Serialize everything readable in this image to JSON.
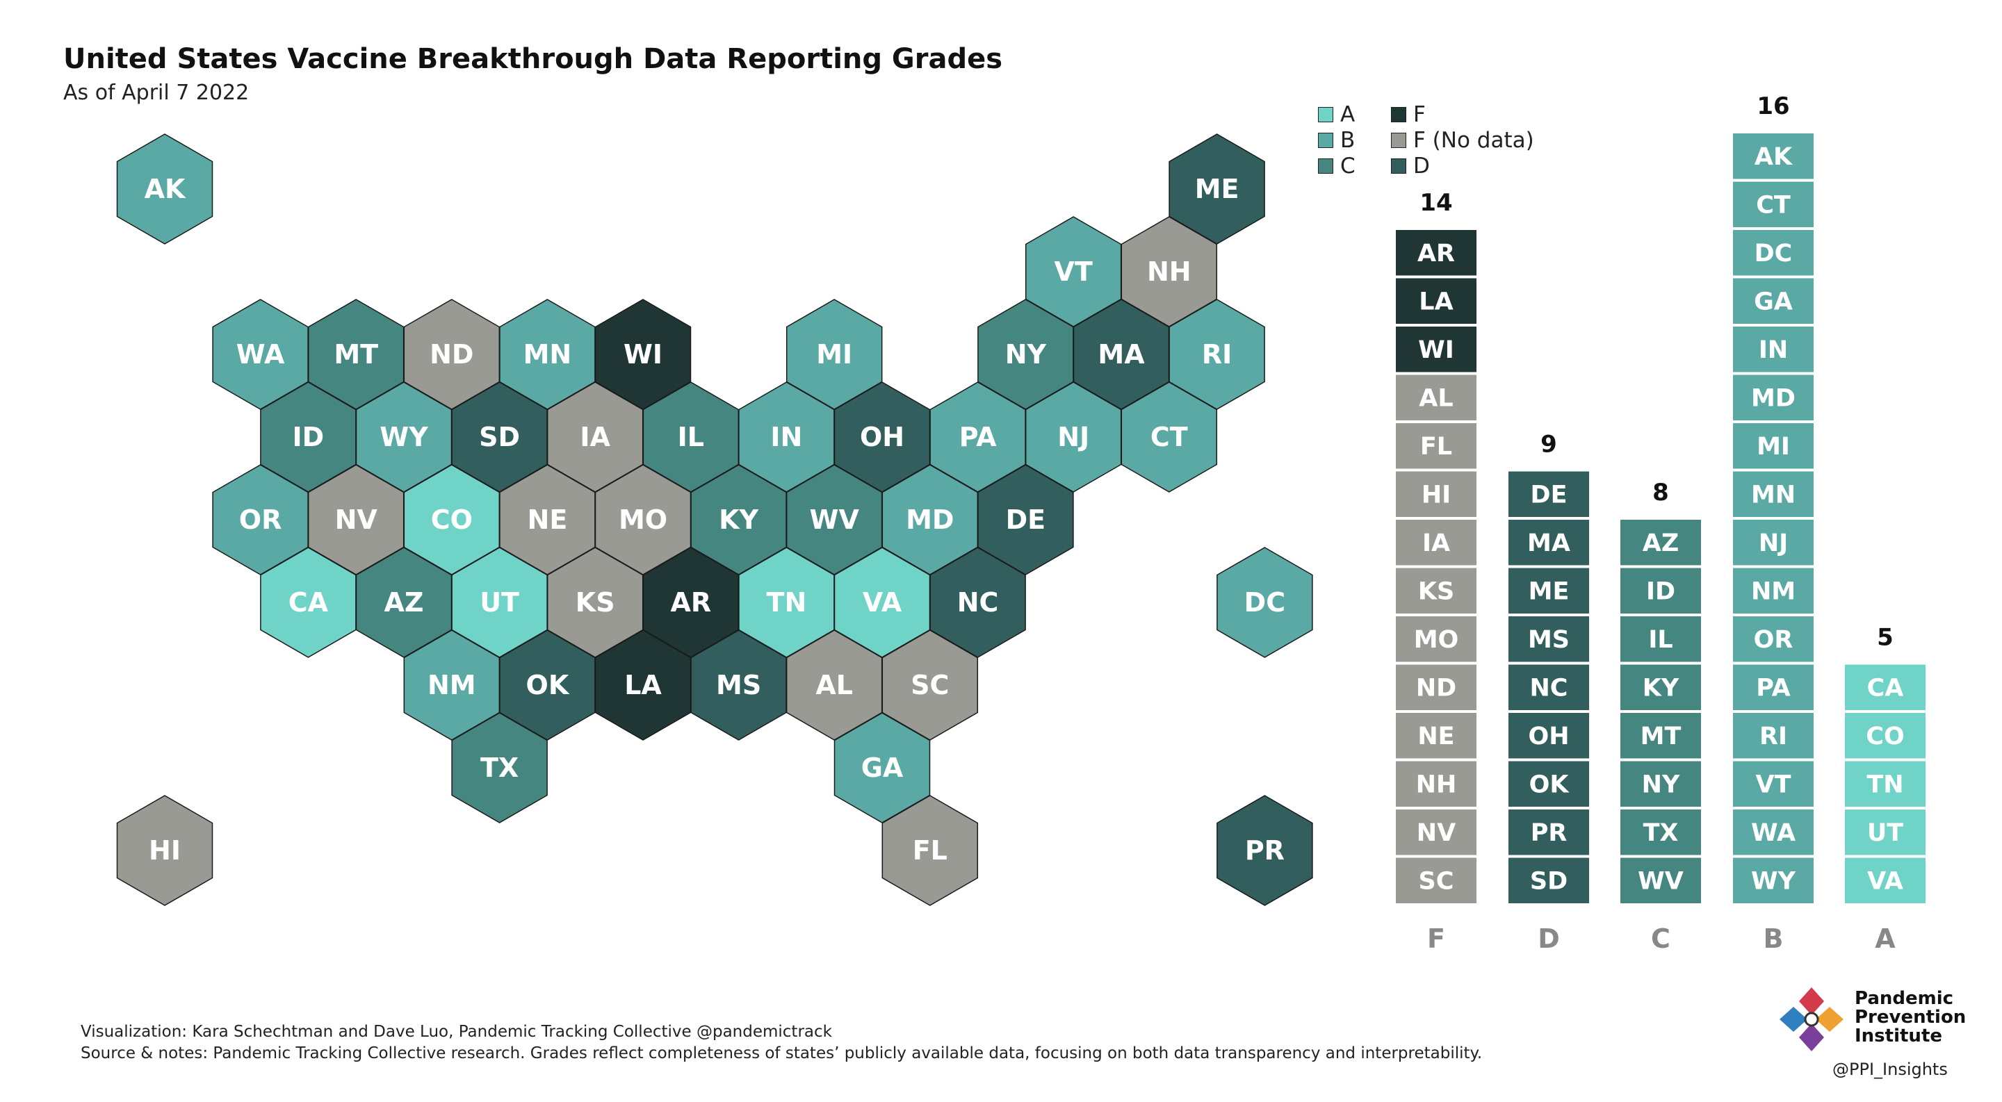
{
  "title": "United States Vaccine Breakthrough Data Reporting Grades",
  "subtitle": "As of April 7 2022",
  "colors": {
    "A": "#6fd3c8",
    "B": "#5ba9a4",
    "C": "#468680",
    "D": "#325f5d",
    "F": "#1f3634",
    "F_no_data": "#9a9a95"
  },
  "legend": [
    {
      "key": "A",
      "label": "A"
    },
    {
      "key": "F",
      "label": "F"
    },
    {
      "key": "B",
      "label": "B"
    },
    {
      "key": "F_no_data",
      "label": "F (No data)"
    },
    {
      "key": "C",
      "label": "C"
    },
    {
      "key": "D",
      "label": "D"
    }
  ],
  "chart_data": [
    {
      "type": "hex tile map",
      "grid": "hex columns and rows (logical grid position, not pixels)",
      "tiles": [
        {
          "state": "AK",
          "grade": "B",
          "col": 0,
          "row": 0
        },
        {
          "state": "ME",
          "grade": "D",
          "col": 11,
          "row": 0
        },
        {
          "state": "VT",
          "grade": "B",
          "col": 9.5,
          "row": 1
        },
        {
          "state": "NH",
          "grade": "F_no_data",
          "col": 10.5,
          "row": 1
        },
        {
          "state": "WA",
          "grade": "B",
          "col": 1,
          "row": 2
        },
        {
          "state": "MT",
          "grade": "C",
          "col": 2,
          "row": 2
        },
        {
          "state": "ND",
          "grade": "F_no_data",
          "col": 3,
          "row": 2
        },
        {
          "state": "MN",
          "grade": "B",
          "col": 4,
          "row": 2
        },
        {
          "state": "WI",
          "grade": "F",
          "col": 5,
          "row": 2
        },
        {
          "state": "MI",
          "grade": "B",
          "col": 7,
          "row": 2
        },
        {
          "state": "NY",
          "grade": "C",
          "col": 9,
          "row": 2
        },
        {
          "state": "MA",
          "grade": "D",
          "col": 10,
          "row": 2
        },
        {
          "state": "RI",
          "grade": "B",
          "col": 11,
          "row": 2
        },
        {
          "state": "ID",
          "grade": "C",
          "col": 1.5,
          "row": 3
        },
        {
          "state": "WY",
          "grade": "B",
          "col": 2.5,
          "row": 3
        },
        {
          "state": "SD",
          "grade": "D",
          "col": 3.5,
          "row": 3
        },
        {
          "state": "IA",
          "grade": "F_no_data",
          "col": 4.5,
          "row": 3
        },
        {
          "state": "IL",
          "grade": "C",
          "col": 5.5,
          "row": 3
        },
        {
          "state": "IN",
          "grade": "B",
          "col": 6.5,
          "row": 3
        },
        {
          "state": "OH",
          "grade": "D",
          "col": 7.5,
          "row": 3
        },
        {
          "state": "PA",
          "grade": "B",
          "col": 8.5,
          "row": 3
        },
        {
          "state": "NJ",
          "grade": "B",
          "col": 9.5,
          "row": 3
        },
        {
          "state": "CT",
          "grade": "B",
          "col": 10.5,
          "row": 3
        },
        {
          "state": "OR",
          "grade": "B",
          "col": 1,
          "row": 4
        },
        {
          "state": "NV",
          "grade": "F_no_data",
          "col": 2,
          "row": 4
        },
        {
          "state": "CO",
          "grade": "A",
          "col": 3,
          "row": 4
        },
        {
          "state": "NE",
          "grade": "F_no_data",
          "col": 4,
          "row": 4
        },
        {
          "state": "MO",
          "grade": "F_no_data",
          "col": 5,
          "row": 4
        },
        {
          "state": "KY",
          "grade": "C",
          "col": 6,
          "row": 4
        },
        {
          "state": "WV",
          "grade": "C",
          "col": 7,
          "row": 4
        },
        {
          "state": "MD",
          "grade": "B",
          "col": 8,
          "row": 4
        },
        {
          "state": "DE",
          "grade": "D",
          "col": 9,
          "row": 4
        },
        {
          "state": "CA",
          "grade": "A",
          "col": 1.5,
          "row": 5
        },
        {
          "state": "AZ",
          "grade": "C",
          "col": 2.5,
          "row": 5
        },
        {
          "state": "UT",
          "grade": "A",
          "col": 3.5,
          "row": 5
        },
        {
          "state": "KS",
          "grade": "F_no_data",
          "col": 4.5,
          "row": 5
        },
        {
          "state": "AR",
          "grade": "F",
          "col": 5.5,
          "row": 5
        },
        {
          "state": "TN",
          "grade": "A",
          "col": 6.5,
          "row": 5
        },
        {
          "state": "VA",
          "grade": "A",
          "col": 7.5,
          "row": 5
        },
        {
          "state": "NC",
          "grade": "D",
          "col": 8.5,
          "row": 5
        },
        {
          "state": "DC",
          "grade": "B",
          "col": 11.5,
          "row": 5
        },
        {
          "state": "NM",
          "grade": "B",
          "col": 3,
          "row": 6
        },
        {
          "state": "OK",
          "grade": "D",
          "col": 4,
          "row": 6
        },
        {
          "state": "LA",
          "grade": "F",
          "col": 5,
          "row": 6
        },
        {
          "state": "MS",
          "grade": "D",
          "col": 6,
          "row": 6
        },
        {
          "state": "AL",
          "grade": "F_no_data",
          "col": 7,
          "row": 6
        },
        {
          "state": "SC",
          "grade": "F_no_data",
          "col": 8,
          "row": 6
        },
        {
          "state": "TX",
          "grade": "C",
          "col": 3.5,
          "row": 7
        },
        {
          "state": "GA",
          "grade": "B",
          "col": 7.5,
          "row": 7
        },
        {
          "state": "HI",
          "grade": "F_no_data",
          "col": 0,
          "row": 8
        },
        {
          "state": "FL",
          "grade": "F_no_data",
          "col": 8,
          "row": 8
        },
        {
          "state": "PR",
          "grade": "D",
          "col": 11.5,
          "row": 8
        }
      ]
    },
    {
      "type": "bar",
      "categories": [
        "F",
        "D",
        "C",
        "B",
        "A"
      ],
      "values": [
        14,
        9,
        8,
        16,
        5
      ],
      "stacks": [
        {
          "grade": "F",
          "count": 14,
          "states": [
            {
              "s": "AR",
              "c": "F"
            },
            {
              "s": "LA",
              "c": "F"
            },
            {
              "s": "WI",
              "c": "F"
            },
            {
              "s": "AL",
              "c": "F_no_data"
            },
            {
              "s": "FL",
              "c": "F_no_data"
            },
            {
              "s": "HI",
              "c": "F_no_data"
            },
            {
              "s": "IA",
              "c": "F_no_data"
            },
            {
              "s": "KS",
              "c": "F_no_data"
            },
            {
              "s": "MO",
              "c": "F_no_data"
            },
            {
              "s": "ND",
              "c": "F_no_data"
            },
            {
              "s": "NE",
              "c": "F_no_data"
            },
            {
              "s": "NH",
              "c": "F_no_data"
            },
            {
              "s": "NV",
              "c": "F_no_data"
            },
            {
              "s": "SC",
              "c": "F_no_data"
            }
          ]
        },
        {
          "grade": "D",
          "count": 9,
          "states": [
            {
              "s": "DE",
              "c": "D"
            },
            {
              "s": "MA",
              "c": "D"
            },
            {
              "s": "ME",
              "c": "D"
            },
            {
              "s": "MS",
              "c": "D"
            },
            {
              "s": "NC",
              "c": "D"
            },
            {
              "s": "OH",
              "c": "D"
            },
            {
              "s": "OK",
              "c": "D"
            },
            {
              "s": "PR",
              "c": "D"
            },
            {
              "s": "SD",
              "c": "D"
            }
          ]
        },
        {
          "grade": "C",
          "count": 8,
          "states": [
            {
              "s": "AZ",
              "c": "C"
            },
            {
              "s": "ID",
              "c": "C"
            },
            {
              "s": "IL",
              "c": "C"
            },
            {
              "s": "KY",
              "c": "C"
            },
            {
              "s": "MT",
              "c": "C"
            },
            {
              "s": "NY",
              "c": "C"
            },
            {
              "s": "TX",
              "c": "C"
            },
            {
              "s": "WV",
              "c": "C"
            }
          ]
        },
        {
          "grade": "B",
          "count": 16,
          "states": [
            {
              "s": "AK",
              "c": "B"
            },
            {
              "s": "CT",
              "c": "B"
            },
            {
              "s": "DC",
              "c": "B"
            },
            {
              "s": "GA",
              "c": "B"
            },
            {
              "s": "IN",
              "c": "B"
            },
            {
              "s": "MD",
              "c": "B"
            },
            {
              "s": "MI",
              "c": "B"
            },
            {
              "s": "MN",
              "c": "B"
            },
            {
              "s": "NJ",
              "c": "B"
            },
            {
              "s": "NM",
              "c": "B"
            },
            {
              "s": "OR",
              "c": "B"
            },
            {
              "s": "PA",
              "c": "B"
            },
            {
              "s": "RI",
              "c": "B"
            },
            {
              "s": "VT",
              "c": "B"
            },
            {
              "s": "WA",
              "c": "B"
            },
            {
              "s": "WY",
              "c": "B"
            }
          ]
        },
        {
          "grade": "A",
          "count": 5,
          "states": [
            {
              "s": "CA",
              "c": "A"
            },
            {
              "s": "CO",
              "c": "A"
            },
            {
              "s": "TN",
              "c": "A"
            },
            {
              "s": "UT",
              "c": "A"
            },
            {
              "s": "VA",
              "c": "A"
            }
          ]
        }
      ]
    }
  ],
  "footer": {
    "credit": "Visualization: Kara Schechtman and Dave Luo, Pandemic Tracking Collective @pandemictrack",
    "source": "Source & notes: Pandemic Tracking Collective research. Grades reflect completeness of states’ publicly available data, focusing on both data transparency and interpretability."
  },
  "brand": {
    "name_lines": [
      "Pandemic",
      "Prevention",
      "Institute"
    ],
    "handle": "@PPI_Insights"
  }
}
